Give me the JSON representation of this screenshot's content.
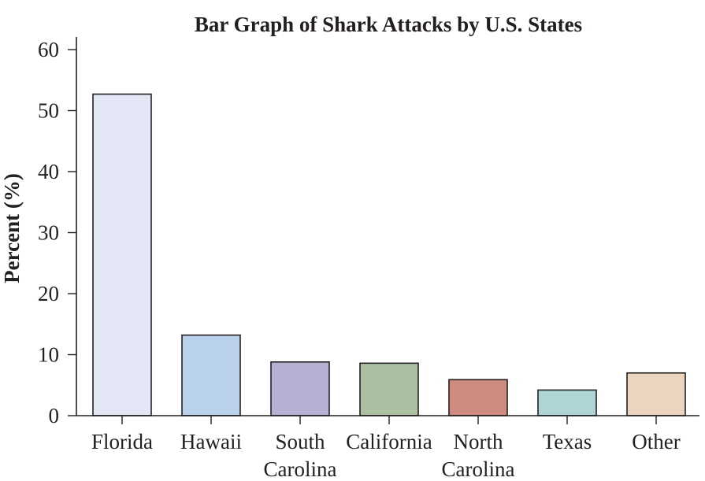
{
  "chart_data": {
    "type": "bar",
    "title": "Bar Graph of Shark Attacks by U.S. States",
    "xlabel": "",
    "ylabel": "Percent (%)",
    "ylim": [
      0,
      60
    ],
    "yticks": [
      0,
      10,
      20,
      30,
      40,
      50,
      60
    ],
    "grid": false,
    "categories": [
      [
        "Florida"
      ],
      [
        "Hawaii"
      ],
      [
        "South",
        "Carolina"
      ],
      [
        "California"
      ],
      [
        "North",
        "Carolina"
      ],
      [
        "Texas"
      ],
      [
        "Other"
      ]
    ],
    "values": [
      52.7,
      13.2,
      8.8,
      8.6,
      5.9,
      4.2,
      7.0
    ],
    "colors": [
      "#e3e6f4",
      "#bad1ec",
      "#b8b0d4",
      "#abbfa3",
      "#cf8b80",
      "#b0d5d7",
      "#ecd5c0"
    ],
    "axis_color": "#231f20"
  }
}
